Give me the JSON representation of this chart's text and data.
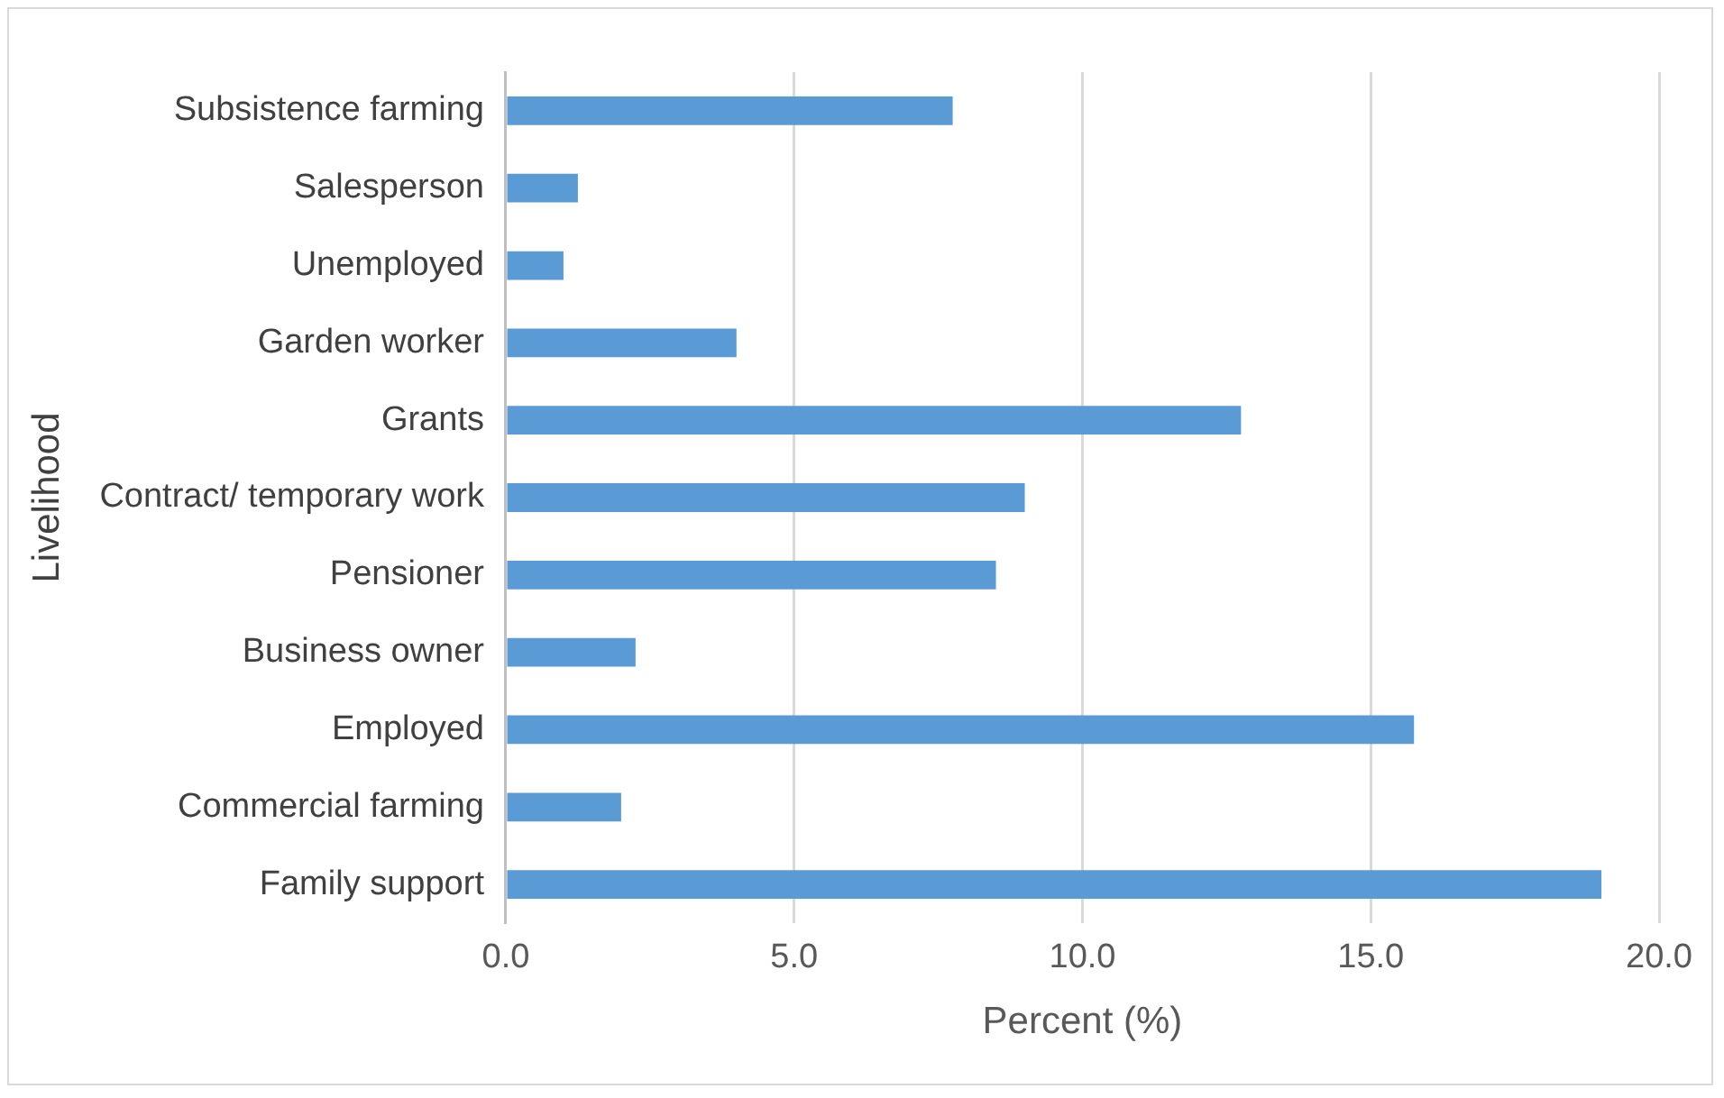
{
  "chart_data": {
    "type": "bar",
    "orientation": "horizontal",
    "xlabel": "Percent (%)",
    "ylabel": "Livelihood",
    "categories": [
      "Subsistence farming",
      "Salesperson",
      "Unemployed",
      "Garden worker",
      "Grants",
      "Contract/ temporary work",
      "Pensioner",
      "Business owner",
      "Employed",
      "Commercial farming",
      "Family support"
    ],
    "values": [
      7.75,
      1.25,
      1.0,
      4.0,
      12.75,
      9.0,
      8.5,
      2.25,
      15.75,
      2.0,
      19.0
    ],
    "color": "#5b9bd5",
    "xlim": [
      0,
      20
    ],
    "xticks": [
      {
        "value": 0,
        "label": "0.0"
      },
      {
        "value": 5,
        "label": "5.0"
      },
      {
        "value": 10,
        "label": "10.0"
      },
      {
        "value": 15,
        "label": "15.0"
      },
      {
        "value": 20,
        "label": "20.0"
      }
    ],
    "grid": "x",
    "legend": false
  }
}
